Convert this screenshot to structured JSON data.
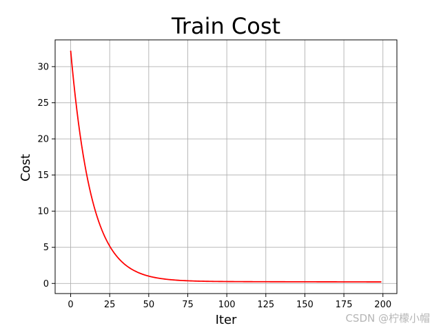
{
  "chart_data": {
    "type": "line",
    "title": "Train Cost",
    "xlabel": "Iter",
    "ylabel": "Cost",
    "xlim": [
      -9.95,
      208.95
    ],
    "ylim": [
      -1.4,
      33.7
    ],
    "xticks": [
      0,
      25,
      50,
      75,
      100,
      125,
      150,
      175,
      200
    ],
    "yticks": [
      0,
      5,
      10,
      15,
      20,
      25,
      30
    ],
    "grid": true,
    "legend": "none",
    "series": [
      {
        "color": "#ff0000",
        "model": {
          "start": 32.2,
          "floor": 0.28,
          "decay": 0.075,
          "drift": -0.00035
        },
        "x_range": [
          0,
          199
        ]
      }
    ]
  },
  "watermark": "CSDN @柠檬小帽",
  "colors": {
    "line": "#ff0000",
    "grid": "#b0b0b0",
    "axes": "#000000",
    "watermark": "#b5b5b5"
  }
}
